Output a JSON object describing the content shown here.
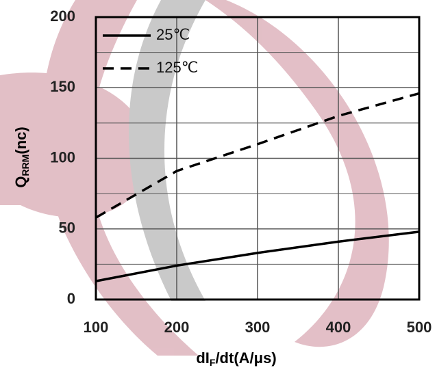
{
  "chart_data": {
    "type": "line",
    "xlabel": {
      "main": "dI",
      "sub": "F",
      "rest": "/dt(A/μs)"
    },
    "ylabel": {
      "main": "Q",
      "sub": "RRM",
      "rest": "(nc)"
    },
    "x": [
      100,
      200,
      300,
      400,
      500
    ],
    "series": [
      {
        "name": "25℃",
        "color": "#000000",
        "dash": "solid",
        "values": [
          13,
          24,
          33,
          41,
          48
        ]
      },
      {
        "name": "125℃",
        "color": "#000000",
        "dash": "dashed",
        "values": [
          58,
          91,
          110,
          130,
          146
        ]
      }
    ],
    "xlim": [
      100,
      500
    ],
    "ylim": [
      0,
      200
    ],
    "xticks": [
      100,
      200,
      300,
      400,
      500
    ],
    "yticks": [
      0,
      50,
      100,
      150,
      200
    ],
    "minor_yticks": [
      25,
      75,
      125,
      175
    ],
    "grid": true,
    "legend": "upper left"
  }
}
